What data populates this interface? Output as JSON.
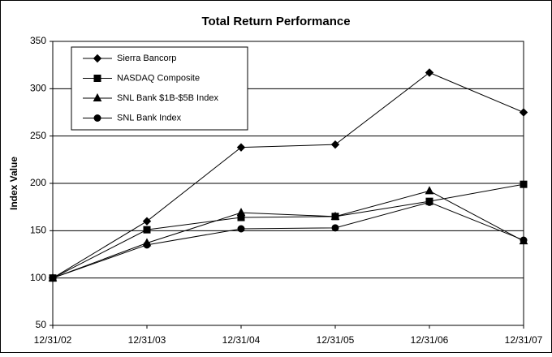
{
  "chart_data": {
    "type": "line",
    "title": "Total Return Performance",
    "y_label": "Index Value",
    "categories": [
      "12/31/02",
      "12/31/03",
      "12/31/04",
      "12/31/05",
      "12/31/06",
      "12/31/07"
    ],
    "series": [
      {
        "name": "Sierra Bancorp",
        "color": "#000000",
        "marker": "diamond",
        "values": [
          100,
          160,
          238,
          241,
          317,
          275
        ]
      },
      {
        "name": "NASDAQ Composite",
        "color": "#000000",
        "marker": "square",
        "values": [
          100,
          151,
          164,
          165,
          181,
          199
        ]
      },
      {
        "name": "SNL Bank $1B-$5B Index",
        "color": "#000000",
        "marker": "triangle",
        "values": [
          100,
          137,
          169,
          165,
          192,
          139
        ]
      },
      {
        "name": "SNL Bank Index",
        "color": "#000000",
        "marker": "circle",
        "values": [
          100,
          135,
          152,
          153,
          180,
          140
        ]
      }
    ],
    "ylim": [
      50,
      350
    ],
    "yticks": [
      50,
      100,
      150,
      200,
      250,
      300,
      350
    ],
    "grid": true,
    "legend": "upper left"
  }
}
